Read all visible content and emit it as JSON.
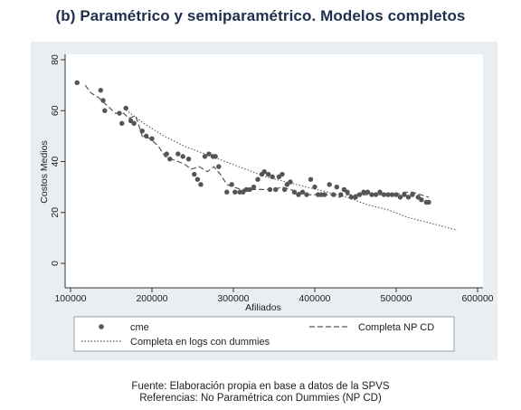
{
  "title": "(b) Paramétrico y semiparamétrico. Modelos completos",
  "caption": {
    "source": "Fuente: Elaboración propia en base a datos de la SPVS",
    "references": "Referencias: No Paramétrica con Dummies (NP CD)"
  },
  "colors": {
    "background": "#e9eef2",
    "plot": "#ffffff",
    "series": "#555555",
    "title": "#1f2f4e"
  },
  "chart_data": {
    "type": "scatter",
    "xlabel": "Afiliados",
    "ylabel": "Costos Medios",
    "xlim": [
      100000,
      600000
    ],
    "ylim": [
      0,
      80
    ],
    "xticks": [
      100000,
      200000,
      300000,
      400000,
      500000,
      600000
    ],
    "xtick_labels": [
      "100000",
      "200000",
      "300000",
      "400000",
      "500000",
      "600000"
    ],
    "yticks": [
      0,
      20,
      40,
      60,
      80
    ],
    "ytick_labels": [
      "0",
      "20",
      "40",
      "60",
      "80"
    ],
    "grid": false,
    "legend_position": "bottom",
    "legend": [
      "cme",
      "Completa NP CD",
      "Completa en logs con dummies"
    ],
    "series": [
      {
        "name": "cme",
        "kind": "markers",
        "points": [
          [
            108000,
            71
          ],
          [
            137000,
            68
          ],
          [
            140000,
            64
          ],
          [
            142000,
            60
          ],
          [
            160000,
            59
          ],
          [
            163000,
            55
          ],
          [
            168000,
            61
          ],
          [
            174000,
            56
          ],
          [
            178000,
            55
          ],
          [
            188000,
            52
          ],
          [
            193000,
            50
          ],
          [
            200000,
            49
          ],
          [
            218000,
            43
          ],
          [
            222000,
            41
          ],
          [
            232000,
            43
          ],
          [
            238000,
            42
          ],
          [
            245000,
            41
          ],
          [
            252000,
            35
          ],
          [
            256000,
            33
          ],
          [
            260000,
            31
          ],
          [
            265000,
            42
          ],
          [
            270000,
            43
          ],
          [
            275000,
            42
          ],
          [
            278000,
            42
          ],
          [
            282000,
            38
          ],
          [
            292000,
            28
          ],
          [
            298000,
            31
          ],
          [
            302000,
            28
          ],
          [
            308000,
            28
          ],
          [
            312000,
            28
          ],
          [
            316000,
            29
          ],
          [
            320000,
            29
          ],
          [
            325000,
            30
          ],
          [
            330000,
            33
          ],
          [
            335000,
            35
          ],
          [
            338000,
            36
          ],
          [
            343000,
            35
          ],
          [
            345000,
            29
          ],
          [
            348000,
            34
          ],
          [
            352000,
            29
          ],
          [
            356000,
            34
          ],
          [
            360000,
            35
          ],
          [
            363000,
            29
          ],
          [
            366000,
            31
          ],
          [
            370000,
            32
          ],
          [
            375000,
            28
          ],
          [
            380000,
            27
          ],
          [
            385000,
            28
          ],
          [
            390000,
            27
          ],
          [
            395000,
            33
          ],
          [
            400000,
            30
          ],
          [
            404000,
            27
          ],
          [
            408000,
            27
          ],
          [
            412000,
            27
          ],
          [
            418000,
            31
          ],
          [
            423000,
            27
          ],
          [
            427000,
            30
          ],
          [
            432000,
            27
          ],
          [
            436000,
            29
          ],
          [
            440000,
            28
          ],
          [
            445000,
            26
          ],
          [
            450000,
            26
          ],
          [
            455000,
            27
          ],
          [
            460000,
            28
          ],
          [
            465000,
            28
          ],
          [
            470000,
            27
          ],
          [
            475000,
            27
          ],
          [
            480000,
            28
          ],
          [
            485000,
            27
          ],
          [
            490000,
            27
          ],
          [
            495000,
            27
          ],
          [
            500000,
            27
          ],
          [
            505000,
            26
          ],
          [
            510000,
            27
          ],
          [
            515000,
            26
          ],
          [
            520000,
            27
          ],
          [
            527000,
            26
          ],
          [
            531000,
            25
          ],
          [
            537000,
            24
          ],
          [
            540000,
            24
          ]
        ]
      },
      {
        "name": "Completa NP CD",
        "kind": "dashed",
        "points": [
          [
            118000,
            70
          ],
          [
            125000,
            67
          ],
          [
            135000,
            65
          ],
          [
            145000,
            62
          ],
          [
            155000,
            59
          ],
          [
            165000,
            59
          ],
          [
            172000,
            57
          ],
          [
            180000,
            58
          ],
          [
            188000,
            50
          ],
          [
            198000,
            49
          ],
          [
            208000,
            46
          ],
          [
            216000,
            42
          ],
          [
            224000,
            41
          ],
          [
            232000,
            40
          ],
          [
            240000,
            39
          ],
          [
            248000,
            37
          ],
          [
            258000,
            38
          ],
          [
            268000,
            36
          ],
          [
            276000,
            38
          ],
          [
            284000,
            35
          ],
          [
            292000,
            31
          ],
          [
            300000,
            30
          ],
          [
            310000,
            29
          ],
          [
            320000,
            29
          ],
          [
            330000,
            29
          ],
          [
            340000,
            29
          ],
          [
            350000,
            29
          ],
          [
            360000,
            30
          ],
          [
            370000,
            29
          ],
          [
            380000,
            28
          ],
          [
            390000,
            27
          ],
          [
            400000,
            27
          ],
          [
            410000,
            27
          ],
          [
            420000,
            27
          ],
          [
            430000,
            26
          ],
          [
            440000,
            27
          ],
          [
            450000,
            27
          ],
          [
            460000,
            27
          ],
          [
            470000,
            27
          ],
          [
            480000,
            27
          ],
          [
            490000,
            27
          ],
          [
            500000,
            27
          ],
          [
            510000,
            28
          ],
          [
            520000,
            28
          ],
          [
            530000,
            27
          ],
          [
            540000,
            26
          ]
        ]
      },
      {
        "name": "Completa en logs con dummies",
        "kind": "dotted",
        "points": [
          [
            165000,
            61
          ],
          [
            190000,
            55
          ],
          [
            215000,
            50
          ],
          [
            240000,
            46
          ],
          [
            265000,
            43
          ],
          [
            290000,
            40
          ],
          [
            315000,
            37
          ],
          [
            340000,
            34
          ],
          [
            365000,
            32
          ],
          [
            390000,
            30
          ],
          [
            415000,
            28
          ],
          [
            440000,
            26
          ],
          [
            465000,
            23
          ],
          [
            490000,
            21
          ],
          [
            515000,
            18
          ],
          [
            540000,
            16
          ],
          [
            575000,
            13
          ]
        ]
      }
    ]
  }
}
